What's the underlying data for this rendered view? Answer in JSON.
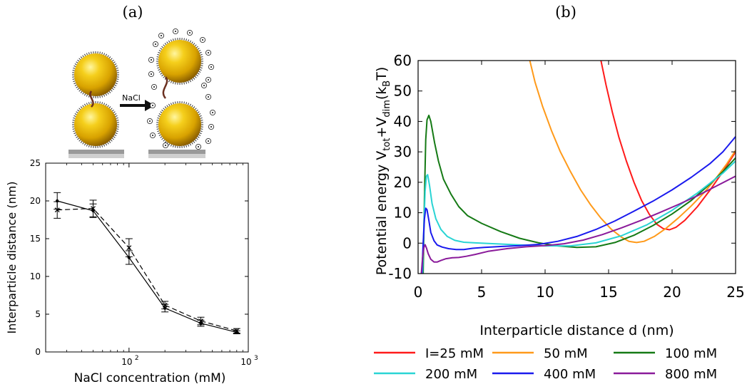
{
  "panels": {
    "a": {
      "label": "(a)"
    },
    "b": {
      "label": "(b)"
    }
  },
  "schematic": {
    "arrow_label": "NaCl"
  },
  "colors": {
    "gold": "#e8b800",
    "gold_dark": "#a87a00",
    "red": "#ff1a1a",
    "orange": "#ff9a1a",
    "green": "#157a15",
    "cyan": "#2ad4d4",
    "blue": "#1a1aee",
    "purple": "#8a1a9a"
  },
  "chart_data": [
    {
      "type": "line",
      "xlabel": "NaCl concentration (mM)",
      "ylabel": "Interparticle distance (nm)",
      "xscale": "log",
      "xlim": [
        20,
        1000
      ],
      "ylim": [
        0,
        25
      ],
      "yticks": [
        0,
        5,
        10,
        15,
        20,
        25
      ],
      "xticks": [
        {
          "value": 100,
          "label": "10",
          "exp": "2"
        },
        {
          "value": 1000,
          "label": "10",
          "exp": "3"
        }
      ],
      "series": [
        {
          "style": "solid",
          "x": [
            25,
            50,
            100,
            200,
            400,
            800
          ],
          "y": [
            20.0,
            18.7,
            12.5,
            5.8,
            3.8,
            2.6
          ],
          "err": [
            1.1,
            0.9,
            0.9,
            0.5,
            0.4,
            0.2
          ]
        },
        {
          "style": "dashed",
          "x": [
            25,
            50,
            100,
            200,
            400,
            800
          ],
          "y": [
            18.8,
            19.0,
            13.8,
            6.2,
            4.1,
            2.8
          ],
          "err": [
            1.1,
            1.1,
            1.2,
            0.5,
            0.5,
            0.3
          ]
        }
      ]
    },
    {
      "type": "line",
      "xlabel": "Interparticle distance d (nm)",
      "ylabel": "Potential energy V",
      "ylabel_sub1": "tot",
      "ylabel_plus": "+V",
      "ylabel_sub2": "dim",
      "ylabel_unit": "(k",
      "ylabel_unit_sub": "B",
      "ylabel_unit_end": "T)",
      "xlim": [
        0,
        25
      ],
      "ylim": [
        -10,
        60
      ],
      "xticks": [
        0,
        5,
        10,
        15,
        20,
        25
      ],
      "yticks": [
        -10,
        0,
        10,
        20,
        30,
        40,
        50,
        60
      ],
      "legend_position": "bottom",
      "series": [
        {
          "name": "I=25 mM",
          "color": "#ff1a1a",
          "x": [
            14.4,
            14.8,
            15.3,
            15.8,
            16.4,
            17.0,
            17.6,
            18.2,
            18.8,
            19.3,
            19.8,
            20.3,
            21.0,
            22.0,
            23.0,
            24.0,
            25.0
          ],
          "y": [
            60,
            52,
            43,
            35,
            27,
            20,
            14,
            9.5,
            6.2,
            4.8,
            4.4,
            5.2,
            7.5,
            12,
            17.5,
            23.5,
            30
          ]
        },
        {
          "name": "50 mM",
          "color": "#ff9a1a",
          "x": [
            8.8,
            9.2,
            9.8,
            10.5,
            11.2,
            12.0,
            12.8,
            13.6,
            14.4,
            15.2,
            16.0,
            16.6,
            17.2,
            17.8,
            18.6,
            19.5,
            20.5,
            21.5,
            22.5,
            23.5,
            24.3,
            25.0
          ],
          "y": [
            60,
            53,
            45,
            37,
            30,
            23.5,
            17.5,
            12.5,
            8.2,
            4.6,
            2.0,
            0.6,
            0.2,
            0.6,
            2.2,
            4.8,
            8.3,
            12.2,
            16.5,
            21.5,
            26,
            30.5
          ]
        },
        {
          "name": "100 mM",
          "color": "#157a15",
          "x": [
            0.4,
            0.5,
            0.6,
            0.7,
            0.85,
            1.0,
            1.3,
            1.6,
            2.0,
            2.6,
            3.2,
            3.9,
            5.0,
            6.5,
            8.0,
            9.5,
            11.0,
            12.5,
            14.0,
            15.5,
            17.0,
            18.5,
            20.0,
            21.5,
            23.0,
            24.0,
            25.0
          ],
          "y": [
            -10,
            15,
            34,
            40.5,
            42,
            40,
            33,
            27,
            21,
            16,
            12,
            9,
            6.5,
            3.8,
            1.6,
            0.1,
            -0.9,
            -1.4,
            -1.2,
            0.2,
            2.6,
            5.8,
            9.6,
            14,
            19.5,
            23.5,
            28
          ]
        },
        {
          "name": "200 mM",
          "color": "#2ad4d4",
          "x": [
            0.35,
            0.45,
            0.55,
            0.65,
            0.75,
            0.9,
            1.1,
            1.4,
            1.8,
            2.3,
            2.9,
            3.6,
            4.5,
            6.0,
            8.0,
            10.0,
            12.0,
            14.0,
            16.0,
            18.0,
            20.0,
            22.0,
            24.0,
            25.0
          ],
          "y": [
            -10,
            5,
            17,
            22,
            22.5,
            19,
            13,
            8,
            4.5,
            2.2,
            0.9,
            0.3,
            0.1,
            -0.2,
            -0.6,
            -0.9,
            -0.9,
            0.1,
            2.4,
            6.0,
            10.8,
            16.5,
            23,
            27
          ]
        },
        {
          "name": "400 mM",
          "color": "#1a1aee",
          "x": [
            0.3,
            0.4,
            0.5,
            0.6,
            0.7,
            0.85,
            1.0,
            1.25,
            1.5,
            1.9,
            2.4,
            3.0,
            3.6,
            4.3,
            5.2,
            6.5,
            8.0,
            9.5,
            11.0,
            12.5,
            14.0,
            15.5,
            17.0,
            18.5,
            20.0,
            21.5,
            23.0,
            24.0,
            25.0
          ],
          "y": [
            -10,
            0,
            8,
            11.5,
            11,
            7.5,
            3.5,
            0.8,
            -0.6,
            -1.3,
            -1.8,
            -2.1,
            -2.1,
            -1.7,
            -1.4,
            -1.1,
            -0.8,
            -0.4,
            0.6,
            2.2,
            4.5,
            7.3,
            10.5,
            13.8,
            17.5,
            21.6,
            26.2,
            30,
            35
          ]
        },
        {
          "name": "800 mM",
          "color": "#8a1a9a",
          "x": [
            0.25,
            0.35,
            0.45,
            0.55,
            0.65,
            0.8,
            1.0,
            1.25,
            1.5,
            1.8,
            2.2,
            2.7,
            3.2,
            3.8,
            4.5,
            5.5,
            7.0,
            8.5,
            10.0,
            11.5,
            13.0,
            14.5,
            16.0,
            17.5,
            19.0,
            20.5,
            22.0,
            23.5,
            25.0
          ],
          "y": [
            -10,
            -5,
            -1.5,
            -0.5,
            -1.5,
            -3.5,
            -5.3,
            -6.2,
            -6.2,
            -5.7,
            -5.1,
            -4.8,
            -4.7,
            -4.3,
            -3.7,
            -2.7,
            -1.8,
            -1.2,
            -0.8,
            -0.2,
            1.0,
            2.8,
            5.0,
            7.4,
            10.0,
            12.7,
            15.6,
            18.8,
            22
          ]
        }
      ]
    }
  ]
}
